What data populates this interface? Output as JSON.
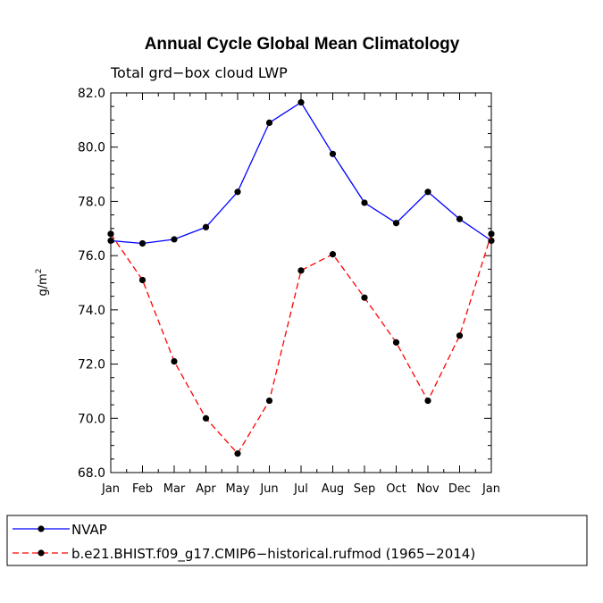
{
  "chart_data": {
    "type": "line",
    "title": "Annual Cycle Global Mean Climatology",
    "subtitle": "Total grd−box cloud LWP",
    "ylabel": "g/m",
    "ylabel_superscript": "2",
    "xlabel": "",
    "ylim": [
      68.0,
      82.0
    ],
    "yticks": [
      "68.0",
      "70.0",
      "72.0",
      "74.0",
      "76.0",
      "78.0",
      "80.0",
      "82.0"
    ],
    "categories": [
      "Jan",
      "Feb",
      "Mar",
      "Apr",
      "May",
      "Jun",
      "Jul",
      "Aug",
      "Sep",
      "Oct",
      "Nov",
      "Dec",
      "Jan"
    ],
    "series": [
      {
        "name": "NVAP",
        "color": "#0000ff",
        "dash": "solid",
        "values": [
          76.55,
          76.45,
          76.6,
          77.05,
          78.35,
          80.9,
          81.65,
          79.75,
          77.95,
          77.2,
          78.35,
          77.35,
          76.55
        ]
      },
      {
        "name": "b.e21.BHIST.f09_g17.CMIP6−historical.rufmod (1965−2014)",
        "color": "#ff0000",
        "dash": "dashed",
        "values": [
          76.8,
          75.1,
          72.1,
          70.0,
          68.7,
          70.65,
          75.45,
          76.05,
          74.45,
          72.8,
          70.65,
          73.05,
          76.8
        ]
      }
    ],
    "legend_location": "bottom"
  }
}
